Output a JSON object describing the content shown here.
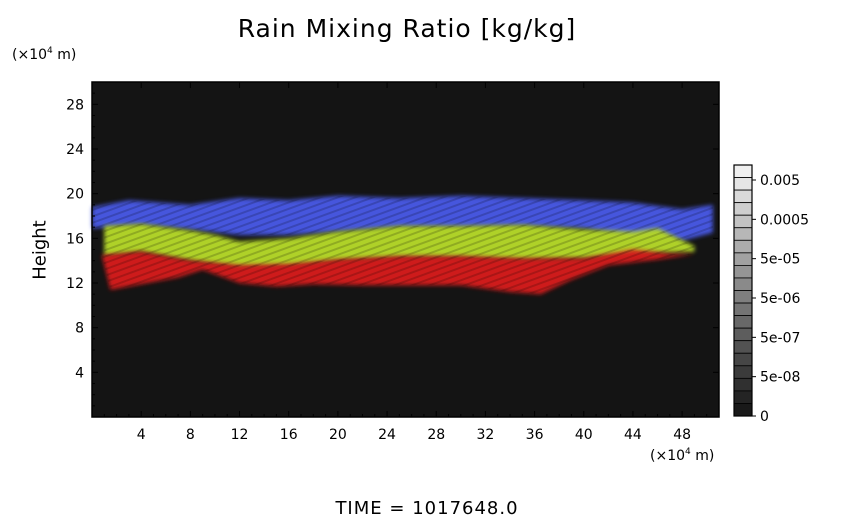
{
  "chart_data": {
    "type": "heatmap",
    "title": "Rain Mixing Ratio [kg/kg]",
    "ylabel": "Height",
    "x_unit": {
      "prefix": "(×10",
      "exp": "4",
      "suffix": " m)"
    },
    "y_unit": {
      "prefix": "(×10",
      "exp": "4",
      "suffix": " m)"
    },
    "xlim": [
      0,
      51
    ],
    "ylim": [
      0,
      30
    ],
    "x_ticks": [
      4,
      8,
      12,
      16,
      20,
      24,
      28,
      32,
      36,
      40,
      44,
      48
    ],
    "y_ticks": [
      4,
      8,
      12,
      16,
      20,
      24,
      28
    ],
    "colorbar": {
      "labels": [
        "0.005",
        "0.0005",
        "5e-05",
        "5e-06",
        "5e-07",
        "5e-08",
        "0"
      ],
      "segments": 20
    },
    "bands": [
      {
        "name": "blue",
        "color": "#4a5ae8",
        "top": [
          [
            0,
            18.8
          ],
          [
            3,
            19.4
          ],
          [
            8,
            19.0
          ],
          [
            12,
            19.6
          ],
          [
            16,
            19.4
          ],
          [
            20,
            19.8
          ],
          [
            25,
            19.6
          ],
          [
            30,
            19.8
          ],
          [
            35,
            19.6
          ],
          [
            40,
            19.4
          ],
          [
            44,
            19.2
          ],
          [
            48,
            18.6
          ],
          [
            50.5,
            19.0
          ]
        ],
        "bottom": [
          [
            0,
            16.9
          ],
          [
            4,
            17.2
          ],
          [
            8,
            16.8
          ],
          [
            12,
            16.3
          ],
          [
            16,
            16.3
          ],
          [
            20,
            16.6
          ],
          [
            25,
            17.0
          ],
          [
            30,
            17.0
          ],
          [
            35,
            17.1
          ],
          [
            40,
            16.9
          ],
          [
            44,
            16.2
          ],
          [
            46,
            16.5
          ],
          [
            48,
            15.8
          ],
          [
            50.5,
            16.5
          ]
        ]
      },
      {
        "name": "green",
        "color": "#b8dc2c",
        "top": [
          [
            1.0,
            17.1
          ],
          [
            4,
            17.3
          ],
          [
            8,
            16.7
          ],
          [
            10,
            16.3
          ],
          [
            12,
            15.7
          ],
          [
            16,
            16.0
          ],
          [
            20,
            16.6
          ],
          [
            25,
            17.1
          ],
          [
            30,
            17.1
          ],
          [
            35,
            17.2
          ],
          [
            40,
            16.8
          ],
          [
            44,
            16.6
          ],
          [
            46,
            16.9
          ],
          [
            49,
            15.3
          ]
        ],
        "bottom": [
          [
            1.0,
            14.4
          ],
          [
            4,
            14.8
          ],
          [
            8,
            14.0
          ],
          [
            12,
            13.4
          ],
          [
            16,
            13.5
          ],
          [
            20,
            14.0
          ],
          [
            25,
            14.3
          ],
          [
            30,
            14.3
          ],
          [
            35,
            14.1
          ],
          [
            40,
            14.2
          ],
          [
            44,
            14.6
          ],
          [
            49,
            14.8
          ]
        ]
      },
      {
        "name": "red",
        "color": "#d81e1e",
        "top": [
          [
            0.8,
            14.5
          ],
          [
            4,
            14.8
          ],
          [
            8,
            14.0
          ],
          [
            12,
            13.6
          ],
          [
            16,
            13.7
          ],
          [
            20,
            14.1
          ],
          [
            25,
            14.4
          ],
          [
            30,
            14.4
          ],
          [
            35,
            14.2
          ],
          [
            40,
            14.2
          ],
          [
            44,
            15.0
          ],
          [
            47,
            14.6
          ],
          [
            49,
            14.6
          ]
        ],
        "bottom": [
          [
            1.5,
            11.4
          ],
          [
            4,
            11.9
          ],
          [
            7,
            12.5
          ],
          [
            9,
            13.2
          ],
          [
            12,
            12.0
          ],
          [
            15,
            11.7
          ],
          [
            18,
            11.9
          ],
          [
            22,
            11.8
          ],
          [
            26,
            11.8
          ],
          [
            30,
            11.8
          ],
          [
            34,
            11.2
          ],
          [
            36.5,
            11.0
          ],
          [
            39,
            12.3
          ],
          [
            42,
            13.6
          ],
          [
            46,
            14.1
          ],
          [
            49,
            14.6
          ]
        ]
      }
    ]
  },
  "footer": {
    "time_label": "TIME",
    "eq": "=",
    "time_value": "1017648.0"
  }
}
